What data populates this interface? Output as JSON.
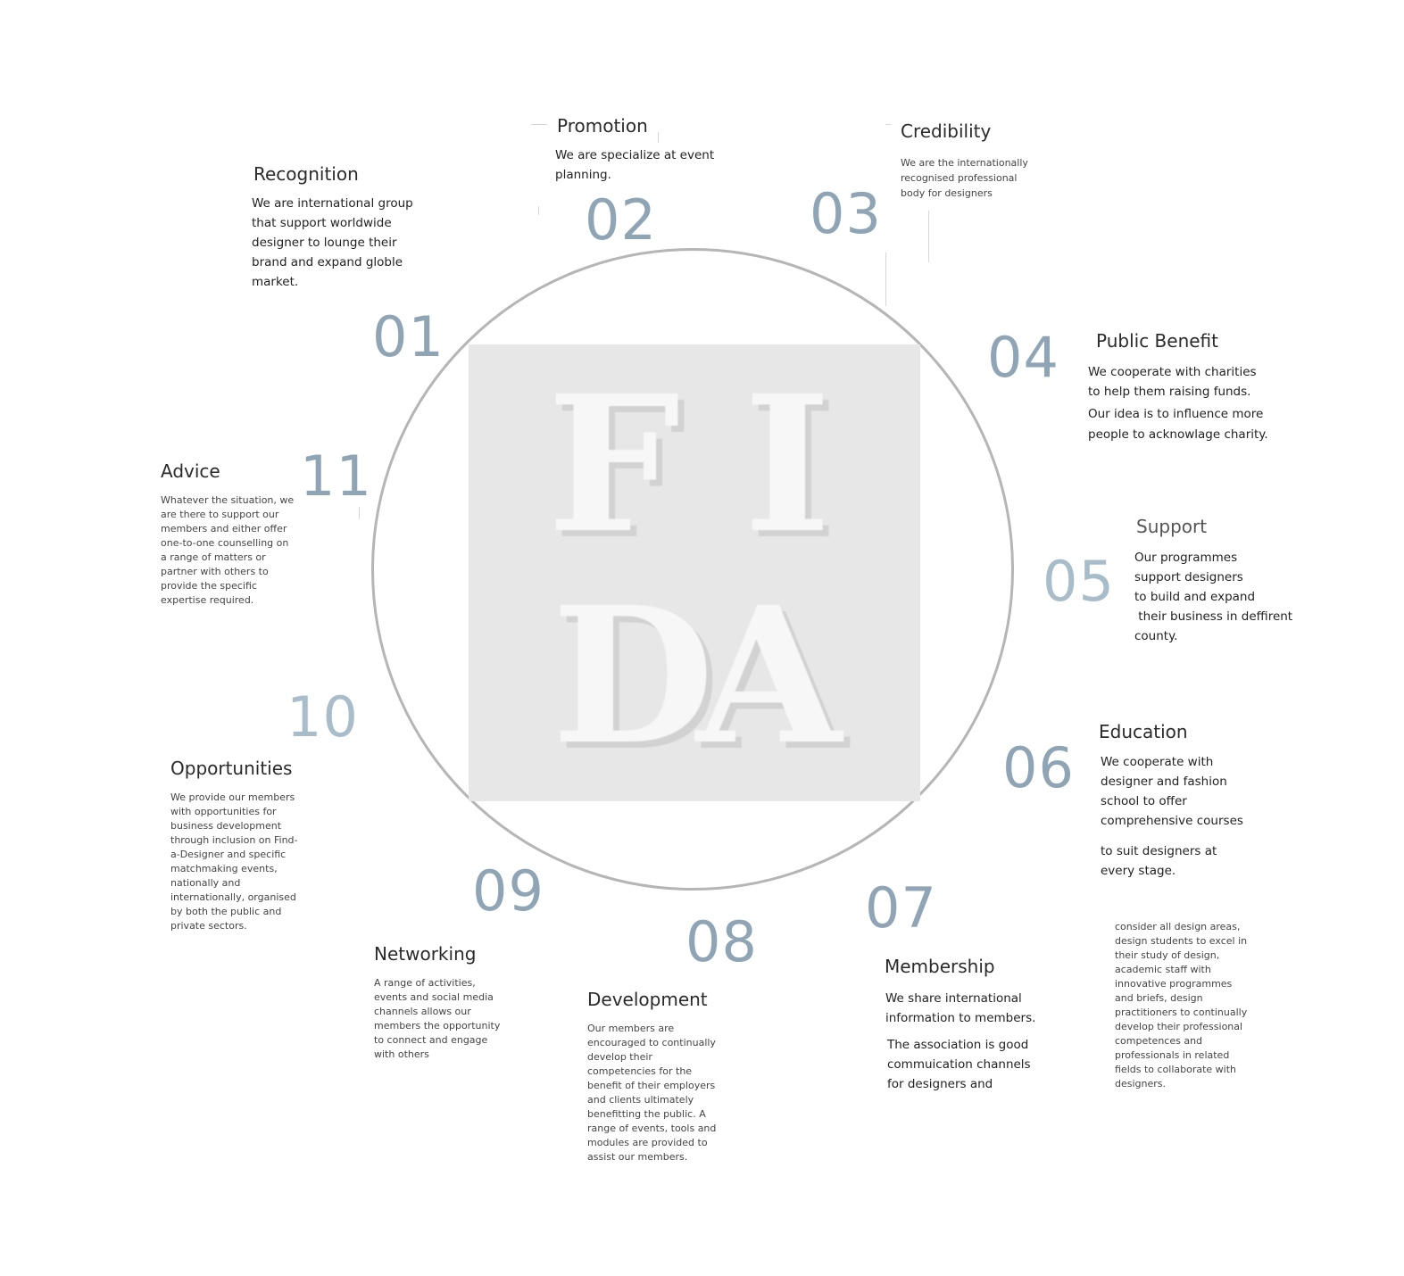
{
  "logo": {
    "letters": [
      "F",
      "I",
      "D",
      "A"
    ]
  },
  "colors": {
    "number": "#8fa5b5",
    "number_light": "#a9bcca",
    "circle": "#b5b5b5",
    "logo_bg": "#e7e7e7"
  },
  "items": [
    {
      "number": "01",
      "title": "Recognition",
      "lines": [
        "We are international group",
        "that support worldwide",
        "designer to lounge their",
        "brand and expand globle",
        "market."
      ]
    },
    {
      "number": "02",
      "title": "Promotion",
      "lines": [
        "We are specialize at event",
        "planning."
      ]
    },
    {
      "number": "03",
      "title": "Credibility",
      "lines": [
        "We are the internationally",
        "recognised professional",
        "body for designers"
      ]
    },
    {
      "number": "04",
      "title": "Public Benefit",
      "lines": [
        "We cooperate with charities",
        "to help them raising funds.",
        "Our idea is to influence more",
        "people to acknowlage charity."
      ]
    },
    {
      "number": "05",
      "title": "Support",
      "lines": [
        "Our programmes",
        "support designers",
        "to build and expand",
        " their business in deffirent",
        "county."
      ]
    },
    {
      "number": "06",
      "title": "Education",
      "lines": [
        "We cooperate with",
        "designer and fashion",
        "school to offer",
        "comprehensive courses",
        "to suit designers at",
        "every stage."
      ],
      "extra_lines": [
        "consider all design areas,",
        "design students to excel in",
        "their study of design,",
        "academic staff with",
        "innovative programmes",
        "and briefs, design",
        "practitioners to continually",
        "develop their professional",
        "competences and",
        "professionals in related",
        "fields to collaborate with",
        "designers."
      ]
    },
    {
      "number": "07",
      "title": "Membership",
      "lines": [
        "We share international",
        "information to members.",
        "The association is good",
        "commuication channels",
        "for designers and"
      ]
    },
    {
      "number": "08",
      "title": "Development",
      "lines": [
        "Our members are",
        "encouraged to continually",
        "develop their",
        "competencies for the",
        "benefit of their employers",
        "and clients ultimately",
        "benefitting the public. A",
        "range of events, tools and",
        "modules are provided to",
        "assist our members."
      ]
    },
    {
      "number": "09",
      "title": "Networking",
      "lines": [
        "A range of activities,",
        "events and social media",
        "channels allows our",
        "members the opportunity",
        "to connect and engage",
        "with others"
      ]
    },
    {
      "number": "10",
      "title": "Opportunities",
      "lines": [
        "We provide our members",
        "with opportunities for",
        "business development",
        "through inclusion on Find-",
        "a-Designer and specific",
        "matchmaking events,",
        "nationally and",
        "internationally, organised",
        "by both the public and",
        "private sectors."
      ]
    },
    {
      "number": "11",
      "title": "Advice",
      "lines": [
        "Whatever the situation, we",
        "are there to support our",
        "members and either offer",
        "one-to-one counselling on",
        "a range of matters or",
        "partner with others to",
        "provide the specific",
        "expertise required."
      ]
    }
  ]
}
